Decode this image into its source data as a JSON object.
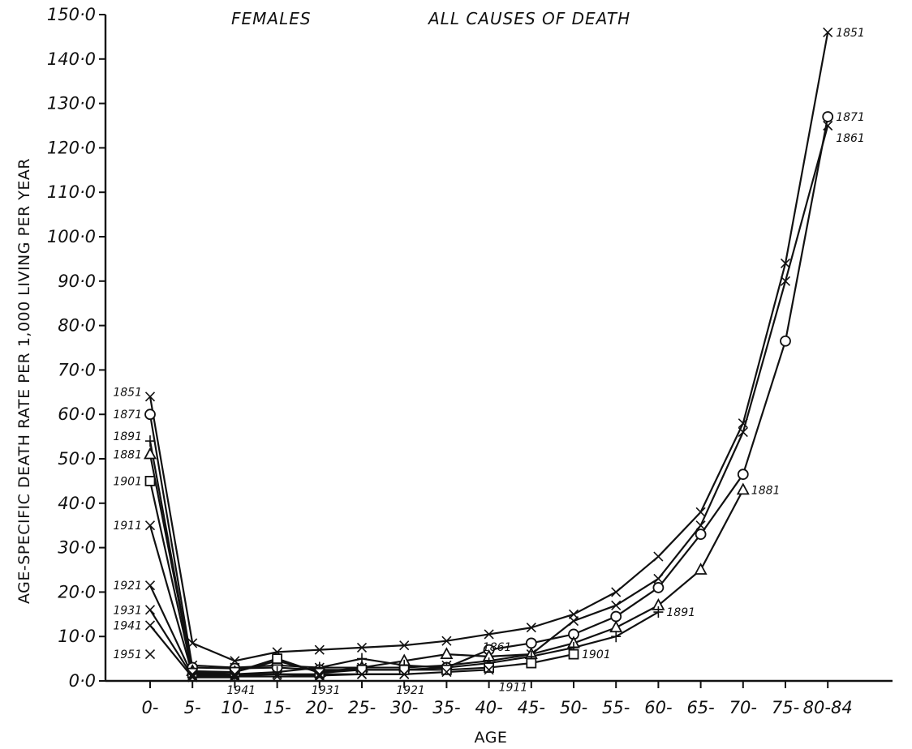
{
  "chart_data": {
    "type": "line",
    "title_left": "FEMALES",
    "title_right": "ALL CAUSES OF DEATH",
    "ylabel": "AGE-SPECIFIC DEATH RATE PER 1,000 LIVING PER YEAR",
    "xlabel": "AGE",
    "ylim": [
      0,
      150
    ],
    "yticks": [
      "0·0",
      "10·0",
      "20·0",
      "30·0",
      "40·0",
      "50·0",
      "60·0",
      "70·0",
      "80·0",
      "90·0",
      "100·0",
      "110·0",
      "120·0",
      "130·0",
      "140·0",
      "150·0"
    ],
    "categories": [
      "0-",
      "5-",
      "10-",
      "15-",
      "20-",
      "25-",
      "30-",
      "35-",
      "40-",
      "45-",
      "50-",
      "55-",
      "60-",
      "65-",
      "70-",
      "75-",
      "80-84"
    ],
    "series": [
      {
        "name": "1851",
        "marker": "x",
        "values": [
          64,
          8.5,
          4.5,
          6.5,
          7,
          7.5,
          8,
          9,
          10.5,
          12,
          15,
          20,
          28,
          38,
          58,
          94,
          146
        ]
      },
      {
        "name": "1861",
        "marker": "x",
        "values": [
          null,
          3.5,
          3,
          3.5,
          3,
          3,
          3,
          3.5,
          4.5,
          6,
          13.5,
          17,
          23,
          35,
          56,
          90,
          125
        ]
      },
      {
        "name": "1871",
        "marker": "o",
        "values": [
          60,
          3,
          2.8,
          3,
          2.5,
          2.5,
          2.5,
          3,
          7,
          8.5,
          10.5,
          14.5,
          21,
          33,
          46.5,
          76.5,
          127
        ]
      },
      {
        "name": "1881",
        "marker": "triangle",
        "values": [
          51,
          2.2,
          2,
          4.5,
          2,
          3,
          4.5,
          6,
          5.5,
          6,
          8.5,
          12,
          17,
          25,
          43,
          null,
          null
        ]
      },
      {
        "name": "1891",
        "marker": "plus",
        "values": [
          54,
          2,
          1.5,
          2,
          3,
          5,
          3.5,
          3,
          4,
          5.5,
          7.5,
          10,
          15.5,
          null,
          null,
          null,
          null
        ]
      },
      {
        "name": "1901",
        "marker": "square",
        "values": [
          45,
          1.8,
          2,
          5,
          1.8,
          2.5,
          2.5,
          2.5,
          3,
          4,
          6,
          null,
          null,
          null,
          null,
          null,
          null
        ]
      },
      {
        "name": "1911",
        "marker": "x",
        "values": [
          35,
          1.5,
          1.5,
          1.5,
          1.5,
          1.5,
          1.5,
          2,
          2.5,
          null,
          null,
          null,
          null,
          null,
          null,
          null,
          null
        ]
      },
      {
        "name": "1921",
        "marker": "x",
        "values": [
          21.5,
          1.2,
          1.2,
          1.5,
          1.2,
          1.5,
          1.5,
          null,
          null,
          null,
          null,
          null,
          null,
          null,
          null,
          null,
          null
        ]
      },
      {
        "name": "1931",
        "marker": "x",
        "values": [
          16,
          1,
          1,
          1,
          1,
          null,
          null,
          null,
          null,
          null,
          null,
          null,
          null,
          null,
          null,
          null,
          null
        ]
      },
      {
        "name": "1941",
        "marker": "x",
        "values": [
          12.5,
          0.8,
          0.8,
          null,
          null,
          null,
          null,
          null,
          null,
          null,
          null,
          null,
          null,
          null,
          null,
          null,
          null
        ]
      },
      {
        "name": "1951",
        "marker": "x",
        "values": [
          6,
          null,
          null,
          null,
          null,
          null,
          null,
          null,
          null,
          null,
          null,
          null,
          null,
          null,
          null,
          null,
          null
        ]
      }
    ],
    "labels": [
      {
        "text": "1851",
        "series": "1851",
        "cat": 0,
        "side": "left"
      },
      {
        "text": "1871",
        "series": "1871",
        "cat": 0,
        "side": "left"
      },
      {
        "text": "1891",
        "series": "1891",
        "cat": 0,
        "side": "left"
      },
      {
        "text": "1881",
        "series": "1881",
        "cat": 0,
        "side": "left"
      },
      {
        "text": "1901",
        "series": "1901",
        "cat": 0,
        "side": "left"
      },
      {
        "text": "1911",
        "series": "1911",
        "cat": 0,
        "side": "left"
      },
      {
        "text": "1921",
        "series": "1921",
        "cat": 0,
        "side": "left"
      },
      {
        "text": "1931",
        "series": "1931",
        "cat": 0,
        "side": "left"
      },
      {
        "text": "1941",
        "series": "1941",
        "cat": 0,
        "side": "left"
      },
      {
        "text": "1951",
        "series": "1951",
        "cat": 0,
        "side": "left"
      },
      {
        "text": "1851",
        "series": "1851",
        "cat": 16,
        "side": "right"
      },
      {
        "text": "1871",
        "series": "1871",
        "cat": 16,
        "side": "right"
      },
      {
        "text": "1861",
        "series": "1861",
        "cat": 16,
        "side": "right-low"
      },
      {
        "text": "1881",
        "series": "1881",
        "cat": 14,
        "side": "right"
      },
      {
        "text": "1891",
        "series": "1891",
        "cat": 12,
        "side": "right"
      },
      {
        "text": "1861",
        "series": "1861",
        "cat": 9,
        "side": "above-right"
      },
      {
        "text": "1901",
        "series": "1901",
        "cat": 10,
        "side": "right"
      },
      {
        "text": "1911",
        "series": "1911",
        "cat": 8,
        "side": "below-right"
      },
      {
        "text": "1921",
        "series": "1921",
        "cat": 6,
        "side": "below"
      },
      {
        "text": "1931",
        "series": "1931",
        "cat": 4,
        "side": "below"
      },
      {
        "text": "1941",
        "series": "1941",
        "cat": 2,
        "side": "below"
      }
    ],
    "grid": false
  }
}
